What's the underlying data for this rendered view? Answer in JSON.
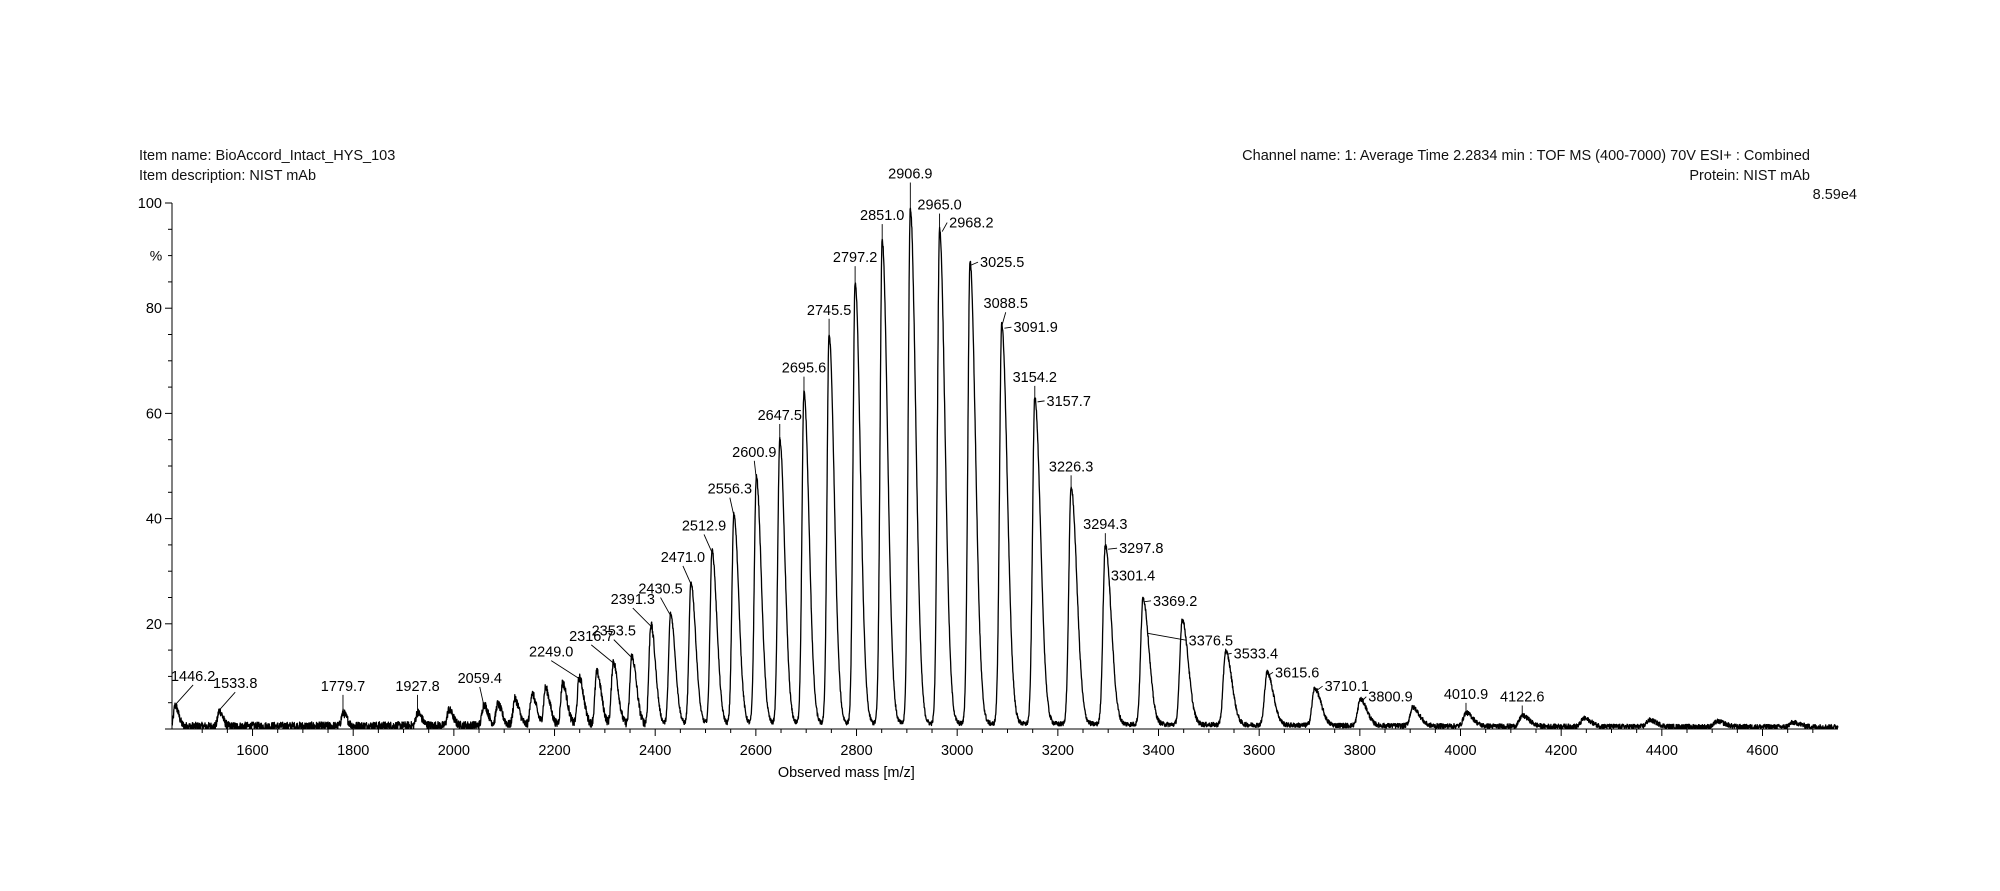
{
  "header": {
    "item_name": "Item name: BioAccord_Intact_HYS_103",
    "item_description": "Item description: NIST mAb",
    "channel_name": "Channel name: 1: Average Time 2.2834 min : TOF MS (400-7000) 70V ESI+ : Combined",
    "protein": "Protein: NIST mAb",
    "max_intensity": "8.59e4"
  },
  "chart_data": {
    "type": "line",
    "xlabel": "Observed mass [m/z]",
    "ylabel": "%",
    "xlim": [
      1440,
      4750
    ],
    "ylim": [
      0,
      100
    ],
    "x_ticks": [
      1600,
      1800,
      2000,
      2200,
      2400,
      2600,
      2800,
      3000,
      3200,
      3400,
      3600,
      3800,
      4000,
      4200,
      4400,
      4600
    ],
    "y_ticks": [
      20,
      40,
      60,
      80,
      100
    ],
    "grid": false,
    "series": [
      {
        "x": [
          1446.2,
          1533.8,
          1779.7,
          1927.8,
          1990.0,
          2059.4,
          2087.0,
          2121.0,
          2155.0,
          2182.0,
          2216.0,
          2249.0,
          2284.0,
          2316.7,
          2353.5,
          2391.3,
          2430.5,
          2471.0,
          2512.9,
          2556.3,
          2600.9,
          2647.5,
          2695.6,
          2745.5,
          2797.2,
          2851.0,
          2906.9,
          2965.0,
          3025.5,
          3088.5,
          3154.2,
          3226.3,
          3294.3,
          3369.2,
          3447.0,
          3533.4,
          3615.6,
          3710.1,
          3800.9,
          3905.0,
          4010.9,
          4122.6,
          4245.0,
          4375.0,
          4510.0,
          4660.0
        ],
        "values": [
          4,
          3,
          2.5,
          2.5,
          3,
          4,
          4,
          5,
          6,
          7,
          8,
          9,
          10,
          12,
          13,
          19,
          21,
          27,
          33,
          40,
          47,
          54,
          63,
          74,
          84,
          92,
          98,
          94,
          88,
          76,
          62,
          45,
          34,
          24,
          20,
          14,
          10,
          7,
          5,
          3.5,
          2.5,
          2,
          1.5,
          1.2,
          1,
          0.8
        ]
      }
    ],
    "annotations": [
      {
        "label": "1446.2",
        "x": 1446.2,
        "y": 4
      },
      {
        "label": "1533.8",
        "x": 1533.8,
        "y": 3
      },
      {
        "label": "1779.7",
        "x": 1779.7,
        "y": 2.5
      },
      {
        "label": "1927.8",
        "x": 1927.8,
        "y": 2.5
      },
      {
        "label": "2059.4",
        "x": 2059.4,
        "y": 4
      },
      {
        "label": "2249.0",
        "x": 2249.0,
        "y": 9
      },
      {
        "label": "2316.7",
        "x": 2316.7,
        "y": 12
      },
      {
        "label": "2353.5",
        "x": 2353.5,
        "y": 13
      },
      {
        "label": "2391.3",
        "x": 2391.3,
        "y": 19
      },
      {
        "label": "2430.5",
        "x": 2430.5,
        "y": 21
      },
      {
        "label": "2471.0",
        "x": 2471.0,
        "y": 27
      },
      {
        "label": "2512.9",
        "x": 2512.9,
        "y": 33
      },
      {
        "label": "2556.3",
        "x": 2556.3,
        "y": 40
      },
      {
        "label": "2600.9",
        "x": 2600.9,
        "y": 47
      },
      {
        "label": "2647.5",
        "x": 2647.5,
        "y": 54
      },
      {
        "label": "2695.6",
        "x": 2695.6,
        "y": 63
      },
      {
        "label": "2745.5",
        "x": 2745.5,
        "y": 74
      },
      {
        "label": "2797.2",
        "x": 2797.2,
        "y": 84
      },
      {
        "label": "2851.0",
        "x": 2851.0,
        "y": 92
      },
      {
        "label": "2906.9",
        "x": 2906.9,
        "y": 98
      },
      {
        "label": "2965.0",
        "x": 2965.0,
        "y": 94
      },
      {
        "label": "2968.2",
        "x": 2968.2,
        "y": 94
      },
      {
        "label": "3025.5",
        "x": 3025.5,
        "y": 88
      },
      {
        "label": "3088.5",
        "x": 3088.5,
        "y": 76
      },
      {
        "label": "3091.9",
        "x": 3091.9,
        "y": 76
      },
      {
        "label": "3154.2",
        "x": 3154.2,
        "y": 62
      },
      {
        "label": "3157.7",
        "x": 3157.7,
        "y": 62
      },
      {
        "label": "3226.3",
        "x": 3226.3,
        "y": 45
      },
      {
        "label": "3294.3",
        "x": 3294.3,
        "y": 34
      },
      {
        "label": "3297.8",
        "x": 3297.8,
        "y": 34
      },
      {
        "label": "3301.4",
        "x": 3301.4,
        "y": 25
      },
      {
        "label": "3369.2",
        "x": 3369.2,
        "y": 24
      },
      {
        "label": "3376.5",
        "x": 3376.5,
        "y": 18
      },
      {
        "label": "3533.4",
        "x": 3533.4,
        "y": 14
      },
      {
        "label": "3615.6",
        "x": 3615.6,
        "y": 10
      },
      {
        "label": "3710.1",
        "x": 3710.1,
        "y": 7
      },
      {
        "label": "3800.9",
        "x": 3800.9,
        "y": 5
      },
      {
        "label": "4010.9",
        "x": 4010.9,
        "y": 2.5
      },
      {
        "label": "4122.6",
        "x": 4122.6,
        "y": 2
      }
    ]
  }
}
